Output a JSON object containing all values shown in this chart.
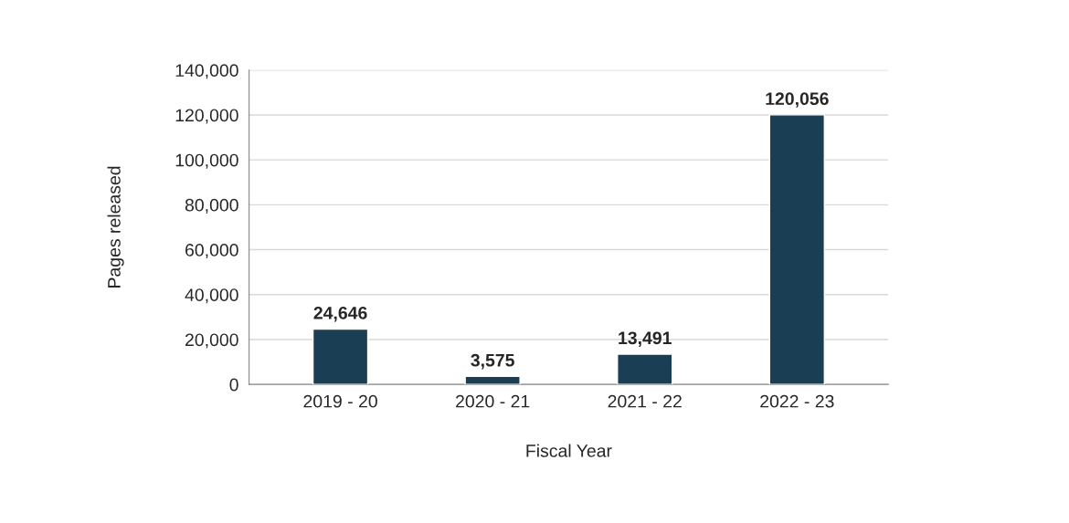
{
  "chart_data": {
    "type": "bar",
    "xlabel": "Fiscal Year",
    "ylabel": "Pages released",
    "categories": [
      "2019 - 20",
      "2020 - 21",
      "2021 - 22",
      "2022 - 23"
    ],
    "values": [
      24646,
      3575,
      13491,
      120056
    ],
    "color": "#1a3f55",
    "ylim": [
      0,
      140000
    ],
    "yticks": [
      {
        "value": 0,
        "label": "0"
      },
      {
        "value": 20000,
        "label": "20,000"
      },
      {
        "value": 40000,
        "label": "40,000"
      },
      {
        "value": 60000,
        "label": "60,000"
      },
      {
        "value": 80000,
        "label": "80,000"
      },
      {
        "value": 100000,
        "label": "100,000"
      },
      {
        "value": 120000,
        "label": "120,000"
      },
      {
        "value": 140000,
        "label": "140,000"
      }
    ],
    "grid": "y",
    "value_labels": [
      "24,646",
      "3,575",
      "13,491",
      "120,056"
    ],
    "legend": false
  }
}
